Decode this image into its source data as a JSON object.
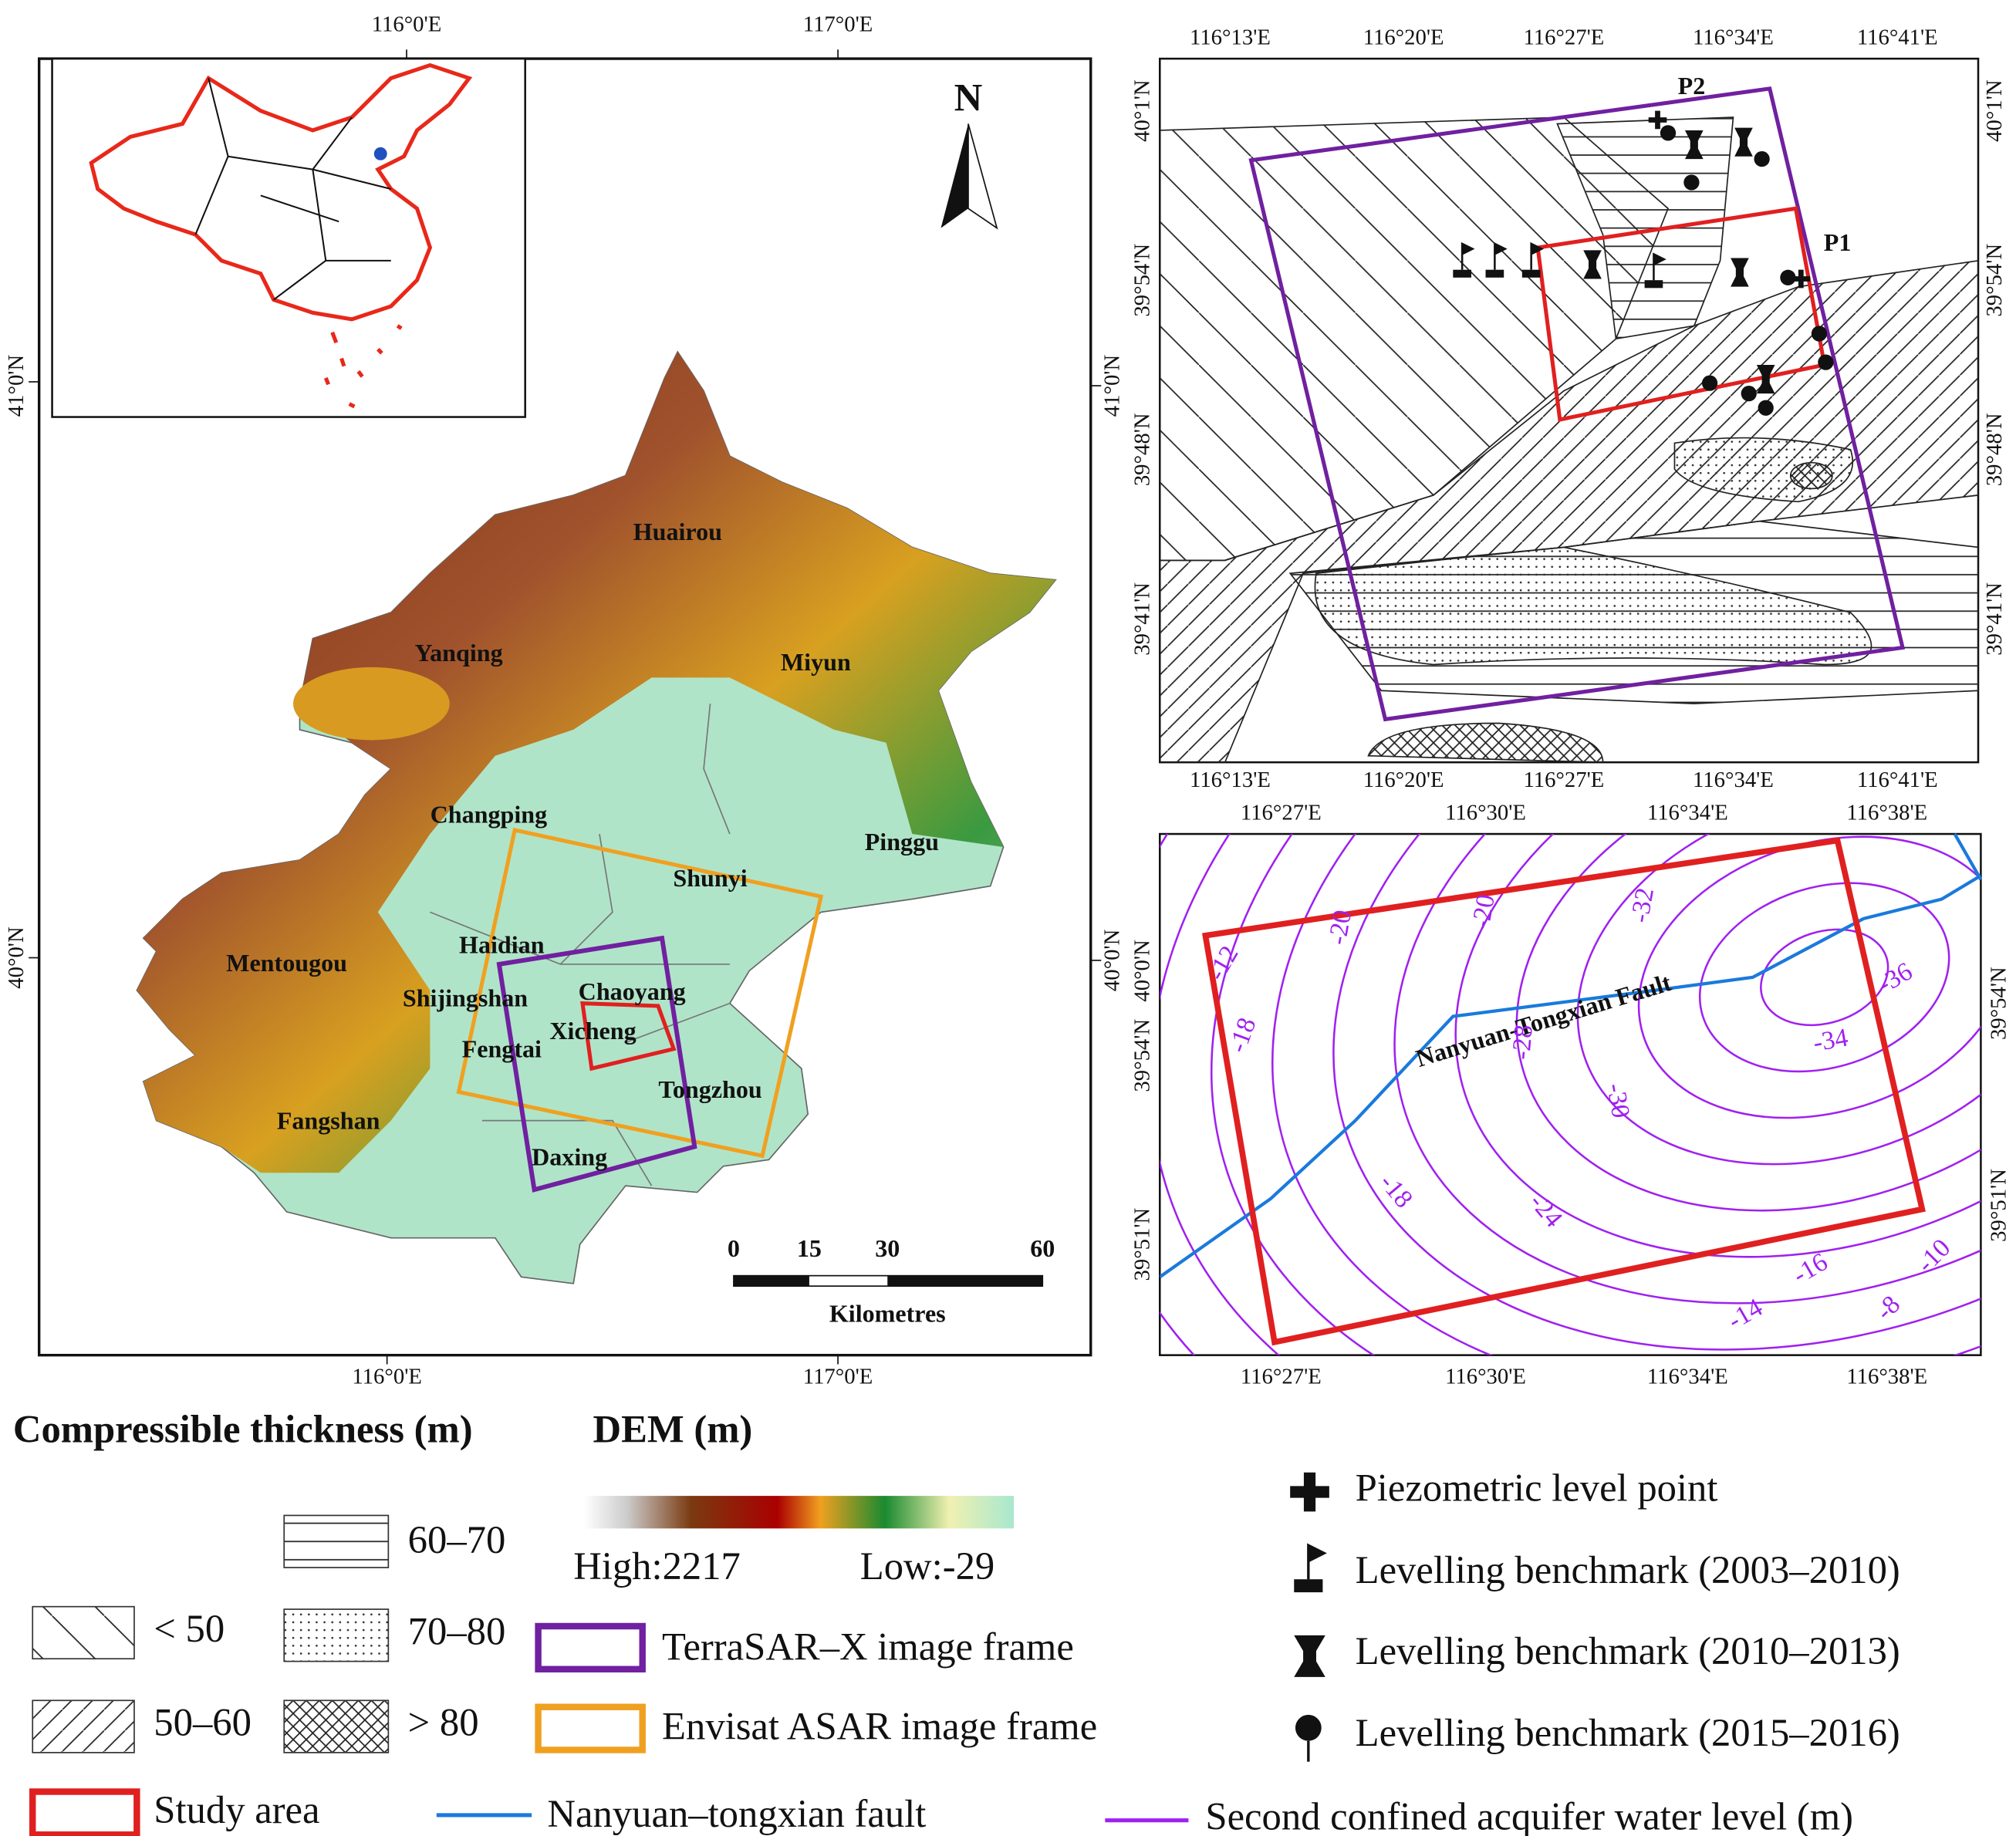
{
  "main_map": {
    "top_lon": [
      "116°0'E",
      "117°0'E"
    ],
    "bottom_lon": [
      "116°0'E",
      "117°0'E"
    ],
    "left_lat": [
      "41°0'N",
      "40°0'N"
    ],
    "right_lat": [
      "41°0'N",
      "40°0'N"
    ],
    "north": "N",
    "districts": [
      "Huairou",
      "Yanqing",
      "Miyun",
      "Changping",
      "Pinggu",
      "Shunyi",
      "Haidian",
      "Mentougou",
      "Shijingshan",
      "Chaoyang",
      "Xicheng",
      "Fengtai",
      "Tongzhou",
      "Fangshan",
      "Daxing"
    ],
    "scale": {
      "ticks": [
        "0",
        "15",
        "30",
        "60"
      ],
      "unit": "Kilometres"
    }
  },
  "geology_map": {
    "top_lon": [
      "116°13'E",
      "116°20'E",
      "116°27'E",
      "116°34'E",
      "116°41'E"
    ],
    "bottom_lon": [
      "116°13'E",
      "116°20'E",
      "116°27'E",
      "116°34'E",
      "116°41'E"
    ],
    "left_lat": [
      "40°1'N",
      "39°54'N",
      "39°48'N",
      "39°41'N"
    ],
    "right_lat": [
      "40°1'N",
      "39°54'N",
      "39°48'N",
      "39°41'N"
    ],
    "points": [
      "P1",
      "P2"
    ]
  },
  "water_map": {
    "top_lon": [
      "116°27'E",
      "116°30'E",
      "116°34'E",
      "116°38'E"
    ],
    "bottom_lon": [
      "116°27'E",
      "116°30'E",
      "116°34'E",
      "116°38'E"
    ],
    "left_lat": [
      "40°0'N",
      "39°54'N",
      "39°51'N"
    ],
    "right_lat": [
      "39°54'N",
      "39°51'N"
    ],
    "fault": "Nanyuan-Tongxian Fault",
    "contours": [
      "-12",
      "-20",
      "-20",
      "-32",
      "-36",
      "-18",
      "-28",
      "-30",
      "-34",
      "-18",
      "-24",
      "-16",
      "-14",
      "-10",
      "-8"
    ]
  },
  "legend": {
    "thickness_title": "Compressible thickness (m)",
    "dem_title": "DEM (m)",
    "thickness": [
      "< 50",
      "50–60",
      "60–70",
      "70–80",
      "> 80"
    ],
    "dem_high": "High:2217",
    "dem_low": "Low:-29",
    "terrasar": "TerraSAR–X image frame",
    "envisat": "Envisat ASAR image frame",
    "study_area": "Study area",
    "fault": "Nanyuan–tongxian fault",
    "water_level": "Second confined acquifer water level (m)",
    "symbols": [
      "Piezometric level point",
      "Levelling benchmark (2003–2010)",
      "Levelling benchmark (2010–2013)",
      "Levelling benchmark (2015–2016)"
    ]
  }
}
